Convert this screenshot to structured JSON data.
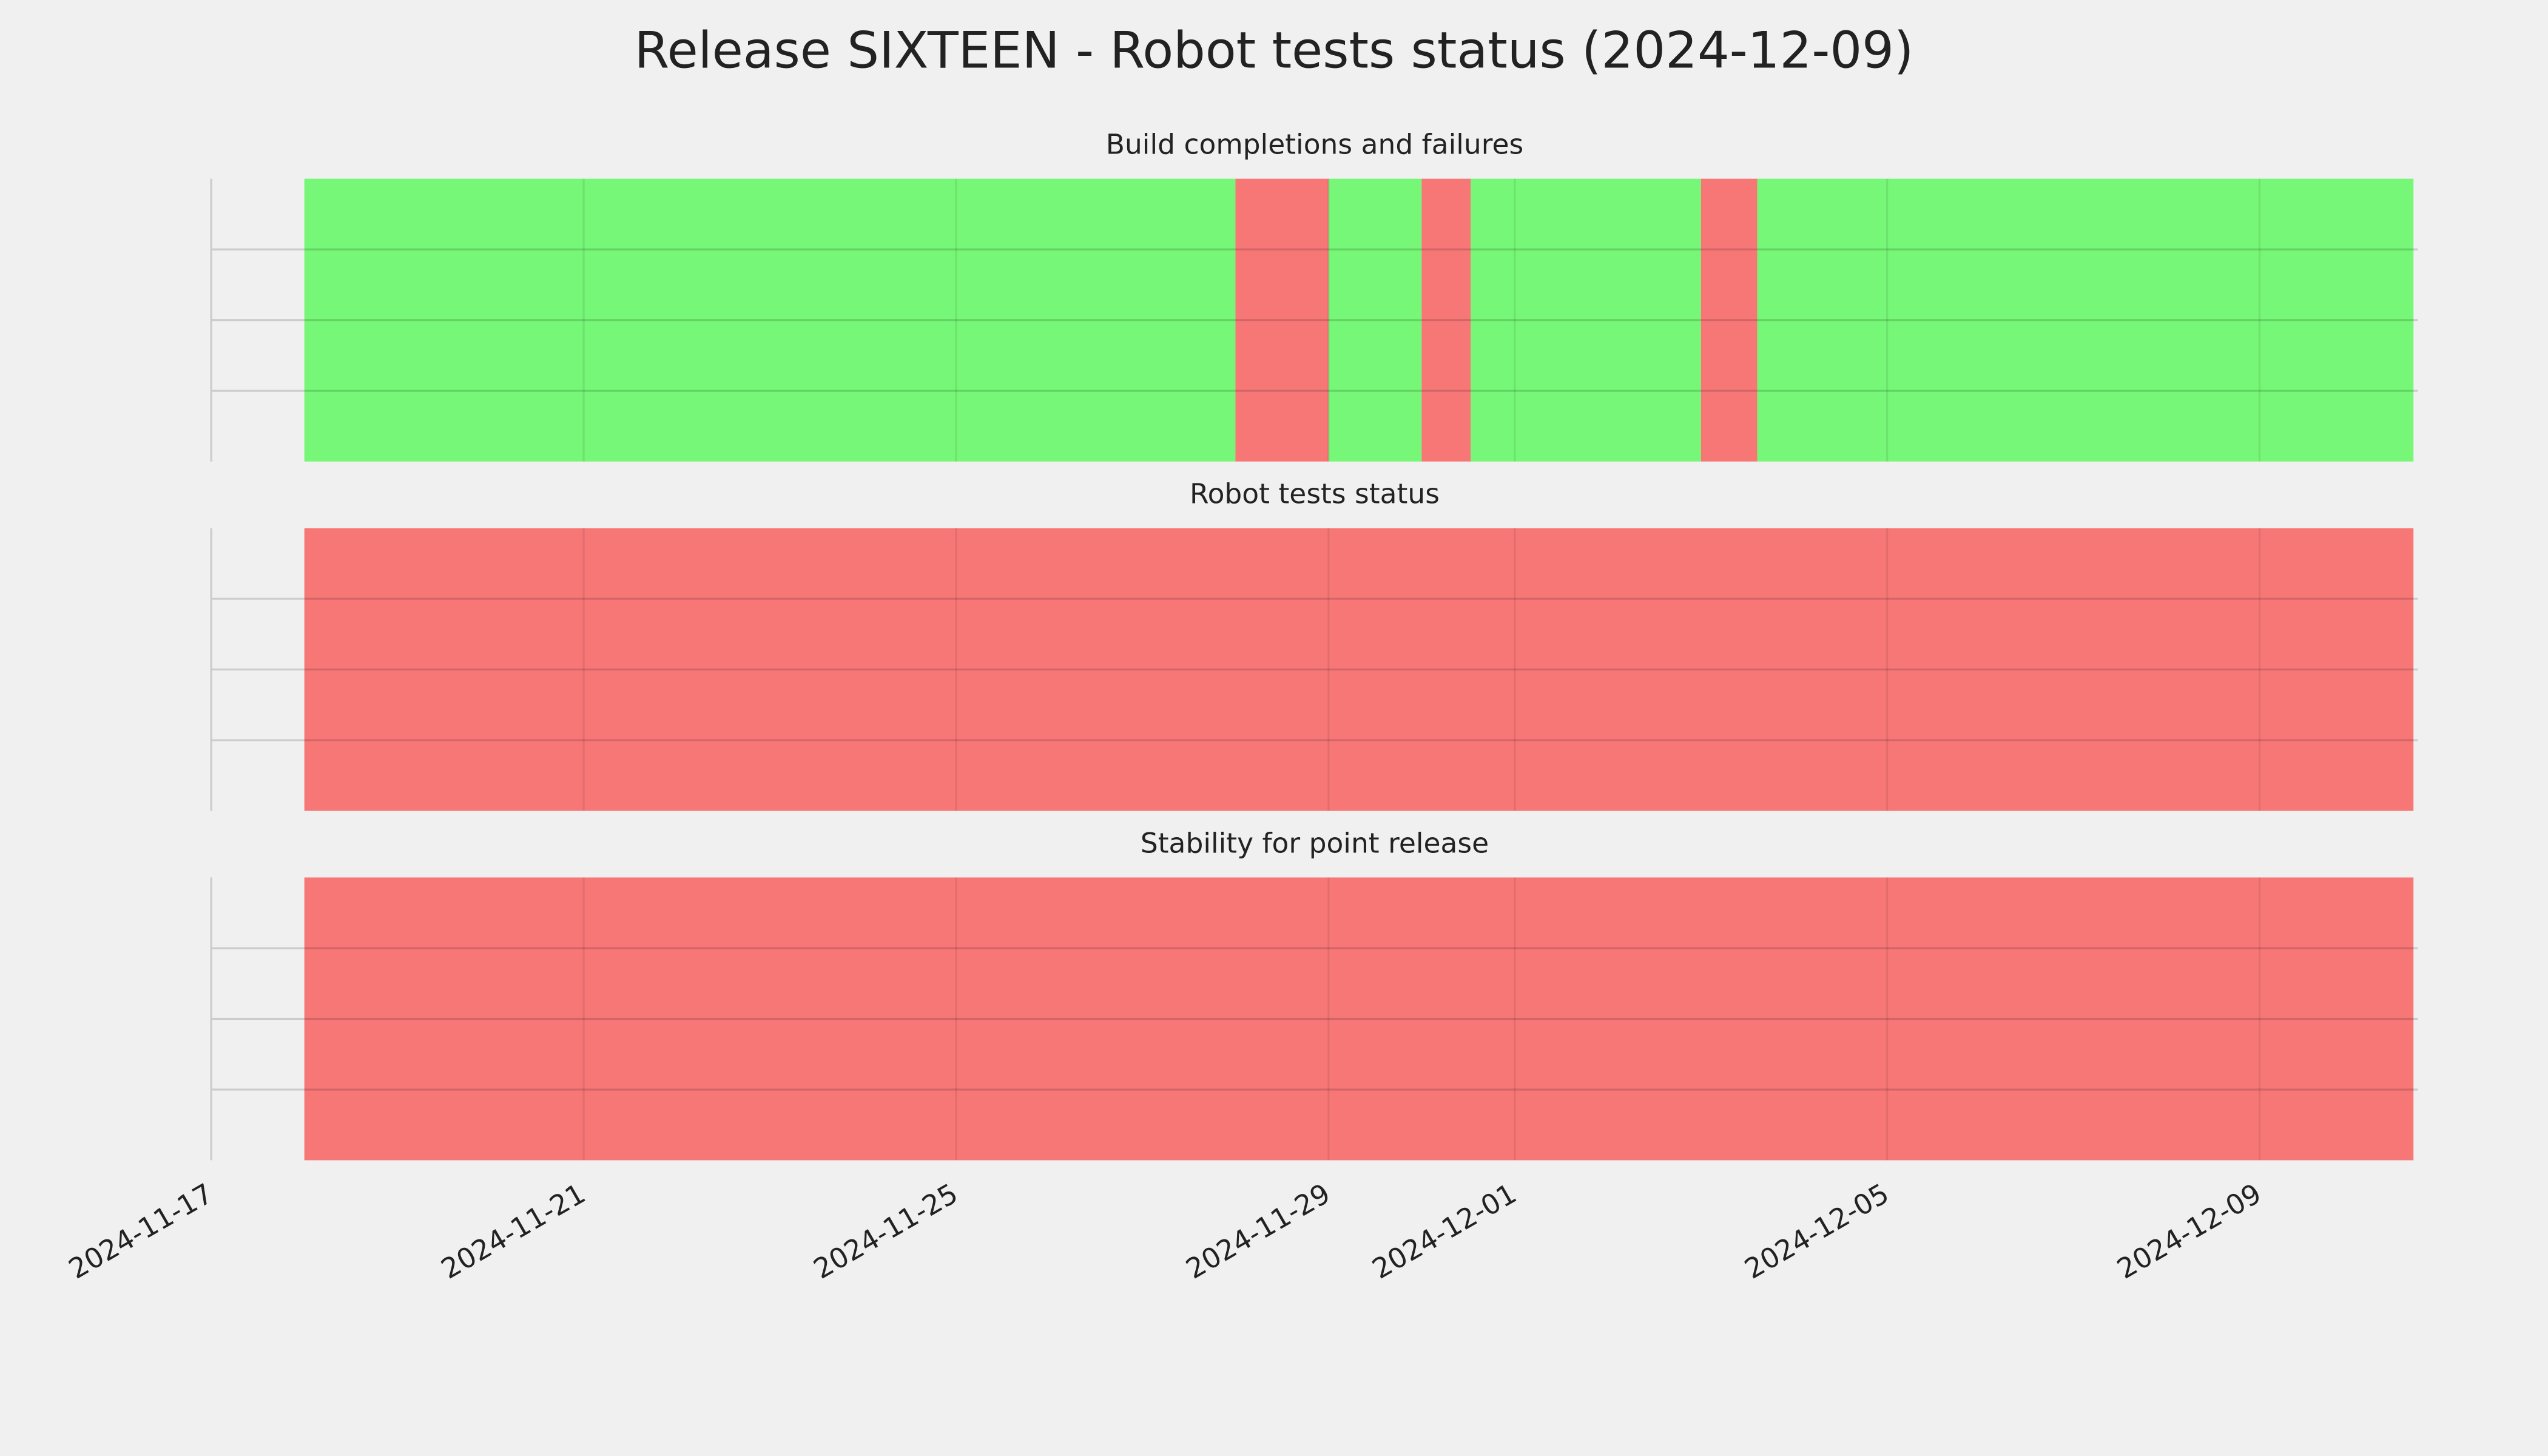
{
  "title": "Release SIXTEEN - Robot tests status (2024-12-09)",
  "chart_data": [
    {
      "type": "timeline",
      "title": "Build completions and failures",
      "intervals": [
        {
          "start": "2024-11-18",
          "end": "2024-11-28",
          "color": "#77f777"
        },
        {
          "start": "2024-11-28",
          "end": "2024-11-29",
          "color": "#f77777"
        },
        {
          "start": "2024-11-29",
          "end": "2024-11-30",
          "color": "#77f777"
        },
        {
          "start": "2024-11-30",
          "end": "2024-11-30 12:40",
          "color": "#f77777"
        },
        {
          "start": "2024-11-30 12:40",
          "end": "2024-12-03",
          "color": "#77f777"
        },
        {
          "start": "2024-12-03",
          "end": "2024-12-03 14:30",
          "color": "#f77777"
        },
        {
          "start": "2024-12-03 14:30",
          "end": "2024-12-10 15:40",
          "color": "#77f777"
        }
      ],
      "xlim": [
        "2024-11-17",
        "2024-12-10 16:50"
      ],
      "xticks": [
        "2024-11-17",
        "2024-11-21",
        "2024-11-25",
        "2024-11-29",
        "2024-12-01",
        "2024-12-05",
        "2024-12-09"
      ],
      "ylim": [
        0,
        4
      ],
      "yticks": [
        1,
        2,
        3
      ],
      "grid": true
    },
    {
      "type": "timeline",
      "title": "Robot tests status",
      "intervals": [
        {
          "start": "2024-11-18",
          "end": "2024-12-10 15:40",
          "color": "#f77777"
        }
      ],
      "xlim": [
        "2024-11-17",
        "2024-12-10 16:50"
      ],
      "xticks": [
        "2024-11-17",
        "2024-11-21",
        "2024-11-25",
        "2024-11-29",
        "2024-12-01",
        "2024-12-05",
        "2024-12-09"
      ],
      "ylim": [
        0,
        4
      ],
      "yticks": [
        1,
        2,
        3
      ],
      "grid": true
    },
    {
      "type": "timeline",
      "title": "Stability for point release",
      "intervals": [
        {
          "start": "2024-11-18",
          "end": "2024-12-10 15:40",
          "color": "#f77777"
        }
      ],
      "xlim": [
        "2024-11-17",
        "2024-12-10 16:50"
      ],
      "xticks": [
        "2024-11-17",
        "2024-11-21",
        "2024-11-25",
        "2024-11-29",
        "2024-12-01",
        "2024-12-05",
        "2024-12-09"
      ],
      "ylim": [
        0,
        4
      ],
      "yticks": [
        1,
        2,
        3
      ],
      "grid": true
    }
  ]
}
